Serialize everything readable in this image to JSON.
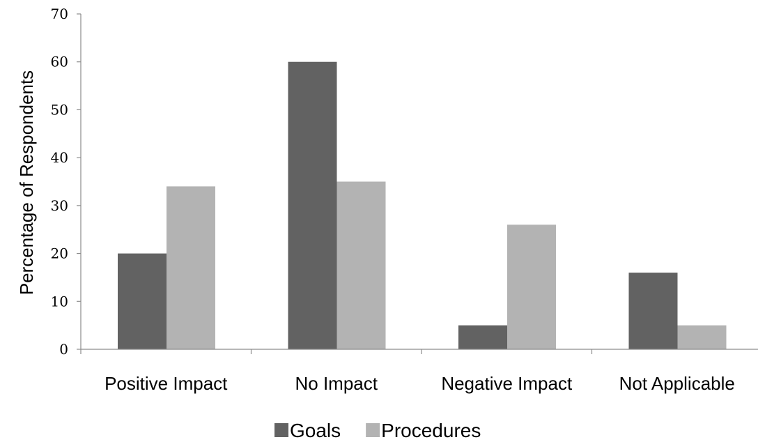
{
  "chart_data": {
    "type": "bar",
    "categories": [
      "Positive Impact",
      "No Impact",
      "Negative Impact",
      "Not Applicable"
    ],
    "series": [
      {
        "name": "Goals",
        "values": [
          20,
          60,
          5,
          16
        ],
        "color": "#626262"
      },
      {
        "name": "Procedures",
        "values": [
          34,
          35,
          26,
          5
        ],
        "color": "#b3b3b3"
      }
    ],
    "ylabel": "Percentage of Respondents",
    "xlabel": "",
    "ylim": [
      0,
      70
    ],
    "yticks": [
      0,
      10,
      20,
      30,
      40,
      50,
      60,
      70
    ],
    "grid": false,
    "legend": "bottom"
  }
}
